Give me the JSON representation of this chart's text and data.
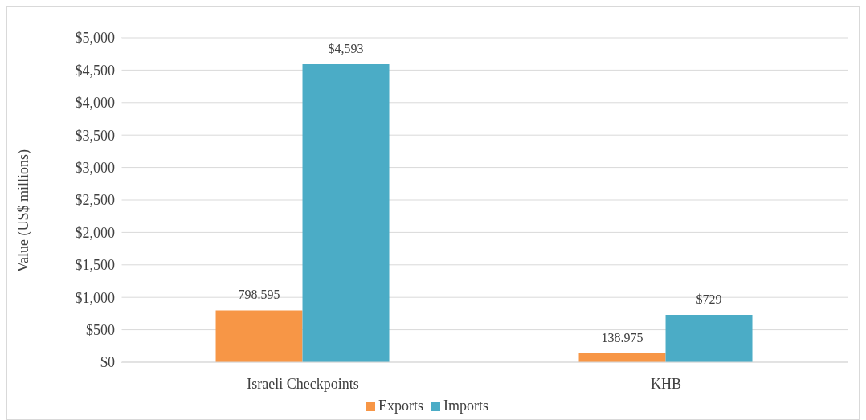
{
  "chart_data": {
    "type": "bar",
    "ylabel": "Value (US$ millions)",
    "categories": [
      "Israeli Checkpoints",
      "KHB"
    ],
    "series": [
      {
        "name": "Exports",
        "color": "#f79646",
        "values": [
          798.595,
          138.975
        ],
        "value_labels": [
          "798.595",
          "138.975"
        ]
      },
      {
        "name": "Imports",
        "color": "#4bacc6",
        "values": [
          4593,
          729
        ],
        "value_labels": [
          "$4,593",
          "$729"
        ]
      }
    ],
    "ylim": [
      0,
      5000
    ],
    "yticks": [
      {
        "value": 0,
        "label": "$0"
      },
      {
        "value": 500,
        "label": "$500"
      },
      {
        "value": 1000,
        "label": "$1,000"
      },
      {
        "value": 1500,
        "label": "$1,500"
      },
      {
        "value": 2000,
        "label": "$2,000"
      },
      {
        "value": 2500,
        "label": "$2,500"
      },
      {
        "value": 3000,
        "label": "$3,000"
      },
      {
        "value": 3500,
        "label": "$3,500"
      },
      {
        "value": 4000,
        "label": "$4,000"
      },
      {
        "value": 4500,
        "label": "$4,500"
      },
      {
        "value": 5000,
        "label": "$5,000"
      }
    ],
    "grid": "y",
    "legend": "bottom"
  }
}
